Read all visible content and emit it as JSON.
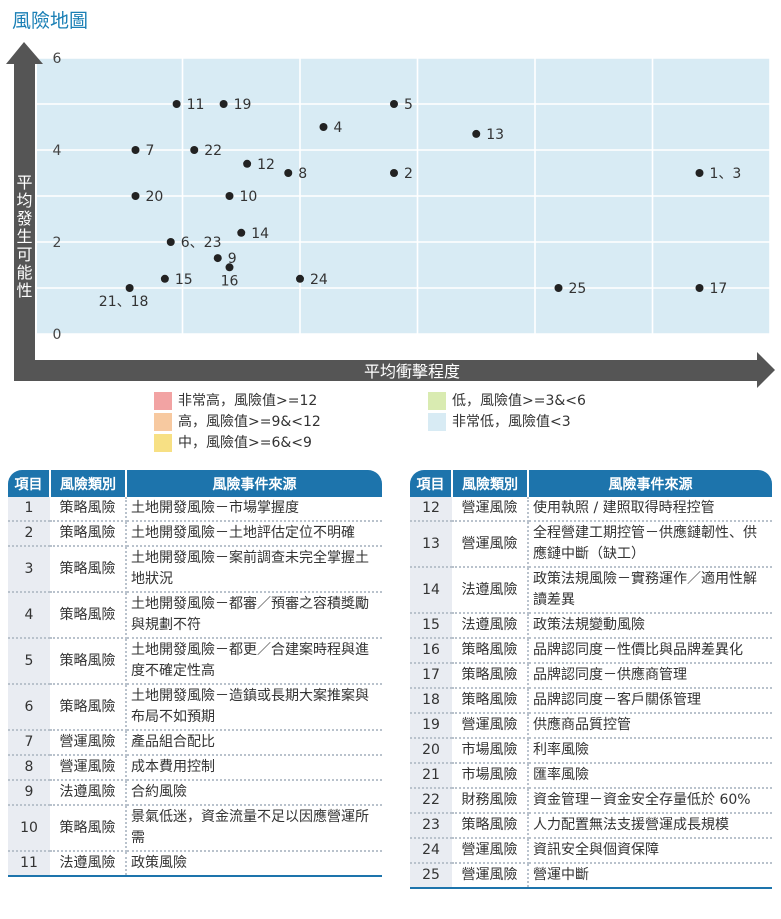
{
  "page_title": "風險地圖",
  "chart_data": {
    "type": "scatter",
    "xlabel": "平均衝擊程度",
    "ylabel": "平均發生可能性",
    "xlim": [
      0,
      6
    ],
    "ylim": [
      0,
      6
    ],
    "y_ticks": [
      "0",
      "2",
      "4",
      "6"
    ],
    "grid": true,
    "risk_zones": [
      {
        "label": "非常高，風險值>=12",
        "min_risk": 12,
        "color": "#f2a3a3"
      },
      {
        "label": "高，風險值>=9&<12",
        "min_risk": 9,
        "color": "#f7c9a0"
      },
      {
        "label": "中，風險值>=6&<9",
        "min_risk": 6,
        "color": "#f7e084"
      },
      {
        "label": "低，風險值>=3&<6",
        "min_risk": 3,
        "color": "#d9ebb1"
      },
      {
        "label": "非常低，風險值<3",
        "min_risk": 0,
        "color": "#d8ebf4"
      }
    ],
    "points": [
      {
        "label": "1、3",
        "x": 5.4,
        "y": 3.5
      },
      {
        "label": "2",
        "x": 2.8,
        "y": 3.5
      },
      {
        "label": "4",
        "x": 2.2,
        "y": 4.5
      },
      {
        "label": "5",
        "x": 2.8,
        "y": 5.0
      },
      {
        "label": "6、23",
        "x": 0.9,
        "y": 2.0
      },
      {
        "label": "7",
        "x": 0.6,
        "y": 4.0
      },
      {
        "label": "8",
        "x": 1.9,
        "y": 3.5
      },
      {
        "label": "9",
        "x": 1.3,
        "y": 1.65
      },
      {
        "label": "10",
        "x": 1.4,
        "y": 3.0
      },
      {
        "label": "11",
        "x": 0.95,
        "y": 5.0
      },
      {
        "label": "12",
        "x": 1.55,
        "y": 3.7
      },
      {
        "label": "13",
        "x": 3.5,
        "y": 4.35
      },
      {
        "label": "14",
        "x": 1.5,
        "y": 2.2
      },
      {
        "label": "15",
        "x": 0.85,
        "y": 1.2
      },
      {
        "label": "16",
        "x": 1.4,
        "y": 1.45
      },
      {
        "label": "17",
        "x": 5.4,
        "y": 1.0
      },
      {
        "label": "19",
        "x": 1.35,
        "y": 5.0
      },
      {
        "label": "20",
        "x": 0.6,
        "y": 3.0
      },
      {
        "label": "21、18",
        "x": 0.55,
        "y": 1.0
      },
      {
        "label": "22",
        "x": 1.1,
        "y": 4.0
      },
      {
        "label": "24",
        "x": 2.0,
        "y": 1.2
      },
      {
        "label": "25",
        "x": 4.2,
        "y": 1.0
      }
    ]
  },
  "table": {
    "headers": [
      "項目",
      "風險類別",
      "風險事件來源"
    ],
    "left_rows": [
      {
        "id": "1",
        "category": "策略風險",
        "source": "土地開發風險－市場掌握度"
      },
      {
        "id": "2",
        "category": "策略風險",
        "source": "土地開發風險－土地評估定位不明確"
      },
      {
        "id": "3",
        "category": "策略風險",
        "source": "土地開發風險－案前調查未完全掌握土地狀況"
      },
      {
        "id": "4",
        "category": "策略風險",
        "source": "土地開發風險－都審／預審之容積獎勵與規劃不符"
      },
      {
        "id": "5",
        "category": "策略風險",
        "source": "土地開發風險－都更／合建案時程與進度不確定性高"
      },
      {
        "id": "6",
        "category": "策略風險",
        "source": "土地開發風險－造鎮或長期大案推案與布局不如預期"
      },
      {
        "id": "7",
        "category": "營運風險",
        "source": "產品組合配比"
      },
      {
        "id": "8",
        "category": "營運風險",
        "source": "成本費用控制"
      },
      {
        "id": "9",
        "category": "法遵風險",
        "source": "合約風險"
      },
      {
        "id": "10",
        "category": "策略風險",
        "source": "景氣低迷，資金流量不足以因應營運所需"
      },
      {
        "id": "11",
        "category": "法遵風險",
        "source": "政策風險"
      }
    ],
    "right_rows": [
      {
        "id": "12",
        "category": "營運風險",
        "source": "使用執照 / 建照取得時程控管"
      },
      {
        "id": "13",
        "category": "營運風險",
        "source": "全程營建工期控管－供應鏈韌性、供應鏈中斷（缺工）"
      },
      {
        "id": "14",
        "category": "法遵風險",
        "source": "政策法規風險－實務運作／適用性解讀差異"
      },
      {
        "id": "15",
        "category": "法遵風險",
        "source": "政策法規變動風險"
      },
      {
        "id": "16",
        "category": "策略風險",
        "source": "品牌認同度－性價比與品牌差異化"
      },
      {
        "id": "17",
        "category": "策略風險",
        "source": "品牌認同度－供應商管理"
      },
      {
        "id": "18",
        "category": "策略風險",
        "source": "品牌認同度－客戶關係管理"
      },
      {
        "id": "19",
        "category": "營運風險",
        "source": "供應商品質控管"
      },
      {
        "id": "20",
        "category": "市場風險",
        "source": "利率風險"
      },
      {
        "id": "21",
        "category": "市場風險",
        "source": "匯率風險"
      },
      {
        "id": "22",
        "category": "財務風險",
        "source": "資金管理－資金安全存量低於 60%"
      },
      {
        "id": "23",
        "category": "策略風險",
        "source": "人力配置無法支援營運成長規模"
      },
      {
        "id": "24",
        "category": "營運風險",
        "source": "資訊安全與個資保障"
      },
      {
        "id": "25",
        "category": "營運風險",
        "source": "營運中斷"
      }
    ]
  }
}
